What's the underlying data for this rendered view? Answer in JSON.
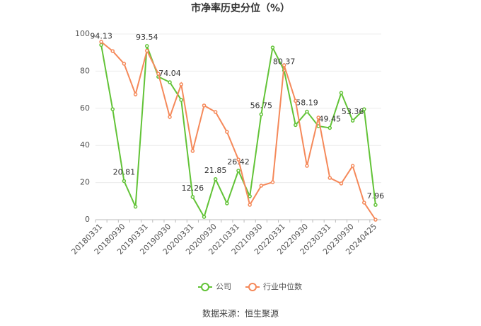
{
  "chart_data": {
    "type": "line",
    "title": "市净率历史分位（%）",
    "categories": [
      "20180331",
      null,
      "20180930",
      null,
      "20190331",
      null,
      "20190930",
      null,
      "20200331",
      null,
      "20200930",
      null,
      "20210331",
      null,
      "20210930",
      null,
      "20220331",
      null,
      "20220930",
      null,
      "20230331",
      null,
      "20230930",
      null,
      "20240425"
    ],
    "series": [
      {
        "name": "公司",
        "color": "#62c337",
        "values": [
          94.13,
          59.5,
          20.81,
          7,
          93.54,
          77,
          74.04,
          64.5,
          12.26,
          1.5,
          21.85,
          8.8,
          26.42,
          12.6,
          56.75,
          92.7,
          80.37,
          51,
          58.19,
          50.4,
          49.45,
          68.3,
          53.36,
          59.5,
          7.96
        ],
        "value_labels": [
          "94.13",
          null,
          "20.81",
          null,
          "93.54",
          null,
          "74.04",
          null,
          "12.26",
          null,
          "21.85",
          null,
          "26.42",
          null,
          "56.75",
          null,
          "80.37",
          null,
          "58.19",
          null,
          "49.45",
          null,
          "53.36",
          null,
          "7.96"
        ]
      },
      {
        "name": "行业中位数",
        "color": "#f5895a",
        "values": [
          95.8,
          90.8,
          84,
          67.5,
          91,
          78.6,
          55.3,
          72.9,
          37,
          61.5,
          58,
          47.3,
          32.4,
          8,
          18.3,
          20.2,
          83.2,
          64,
          29,
          55,
          22.5,
          19.5,
          29,
          9.2,
          0
        ]
      }
    ],
    "ylim": [
      0,
      100
    ],
    "yticks": [
      0,
      20,
      40,
      60,
      80,
      100
    ],
    "grid": true,
    "source": "数据来源：恒生聚源"
  }
}
